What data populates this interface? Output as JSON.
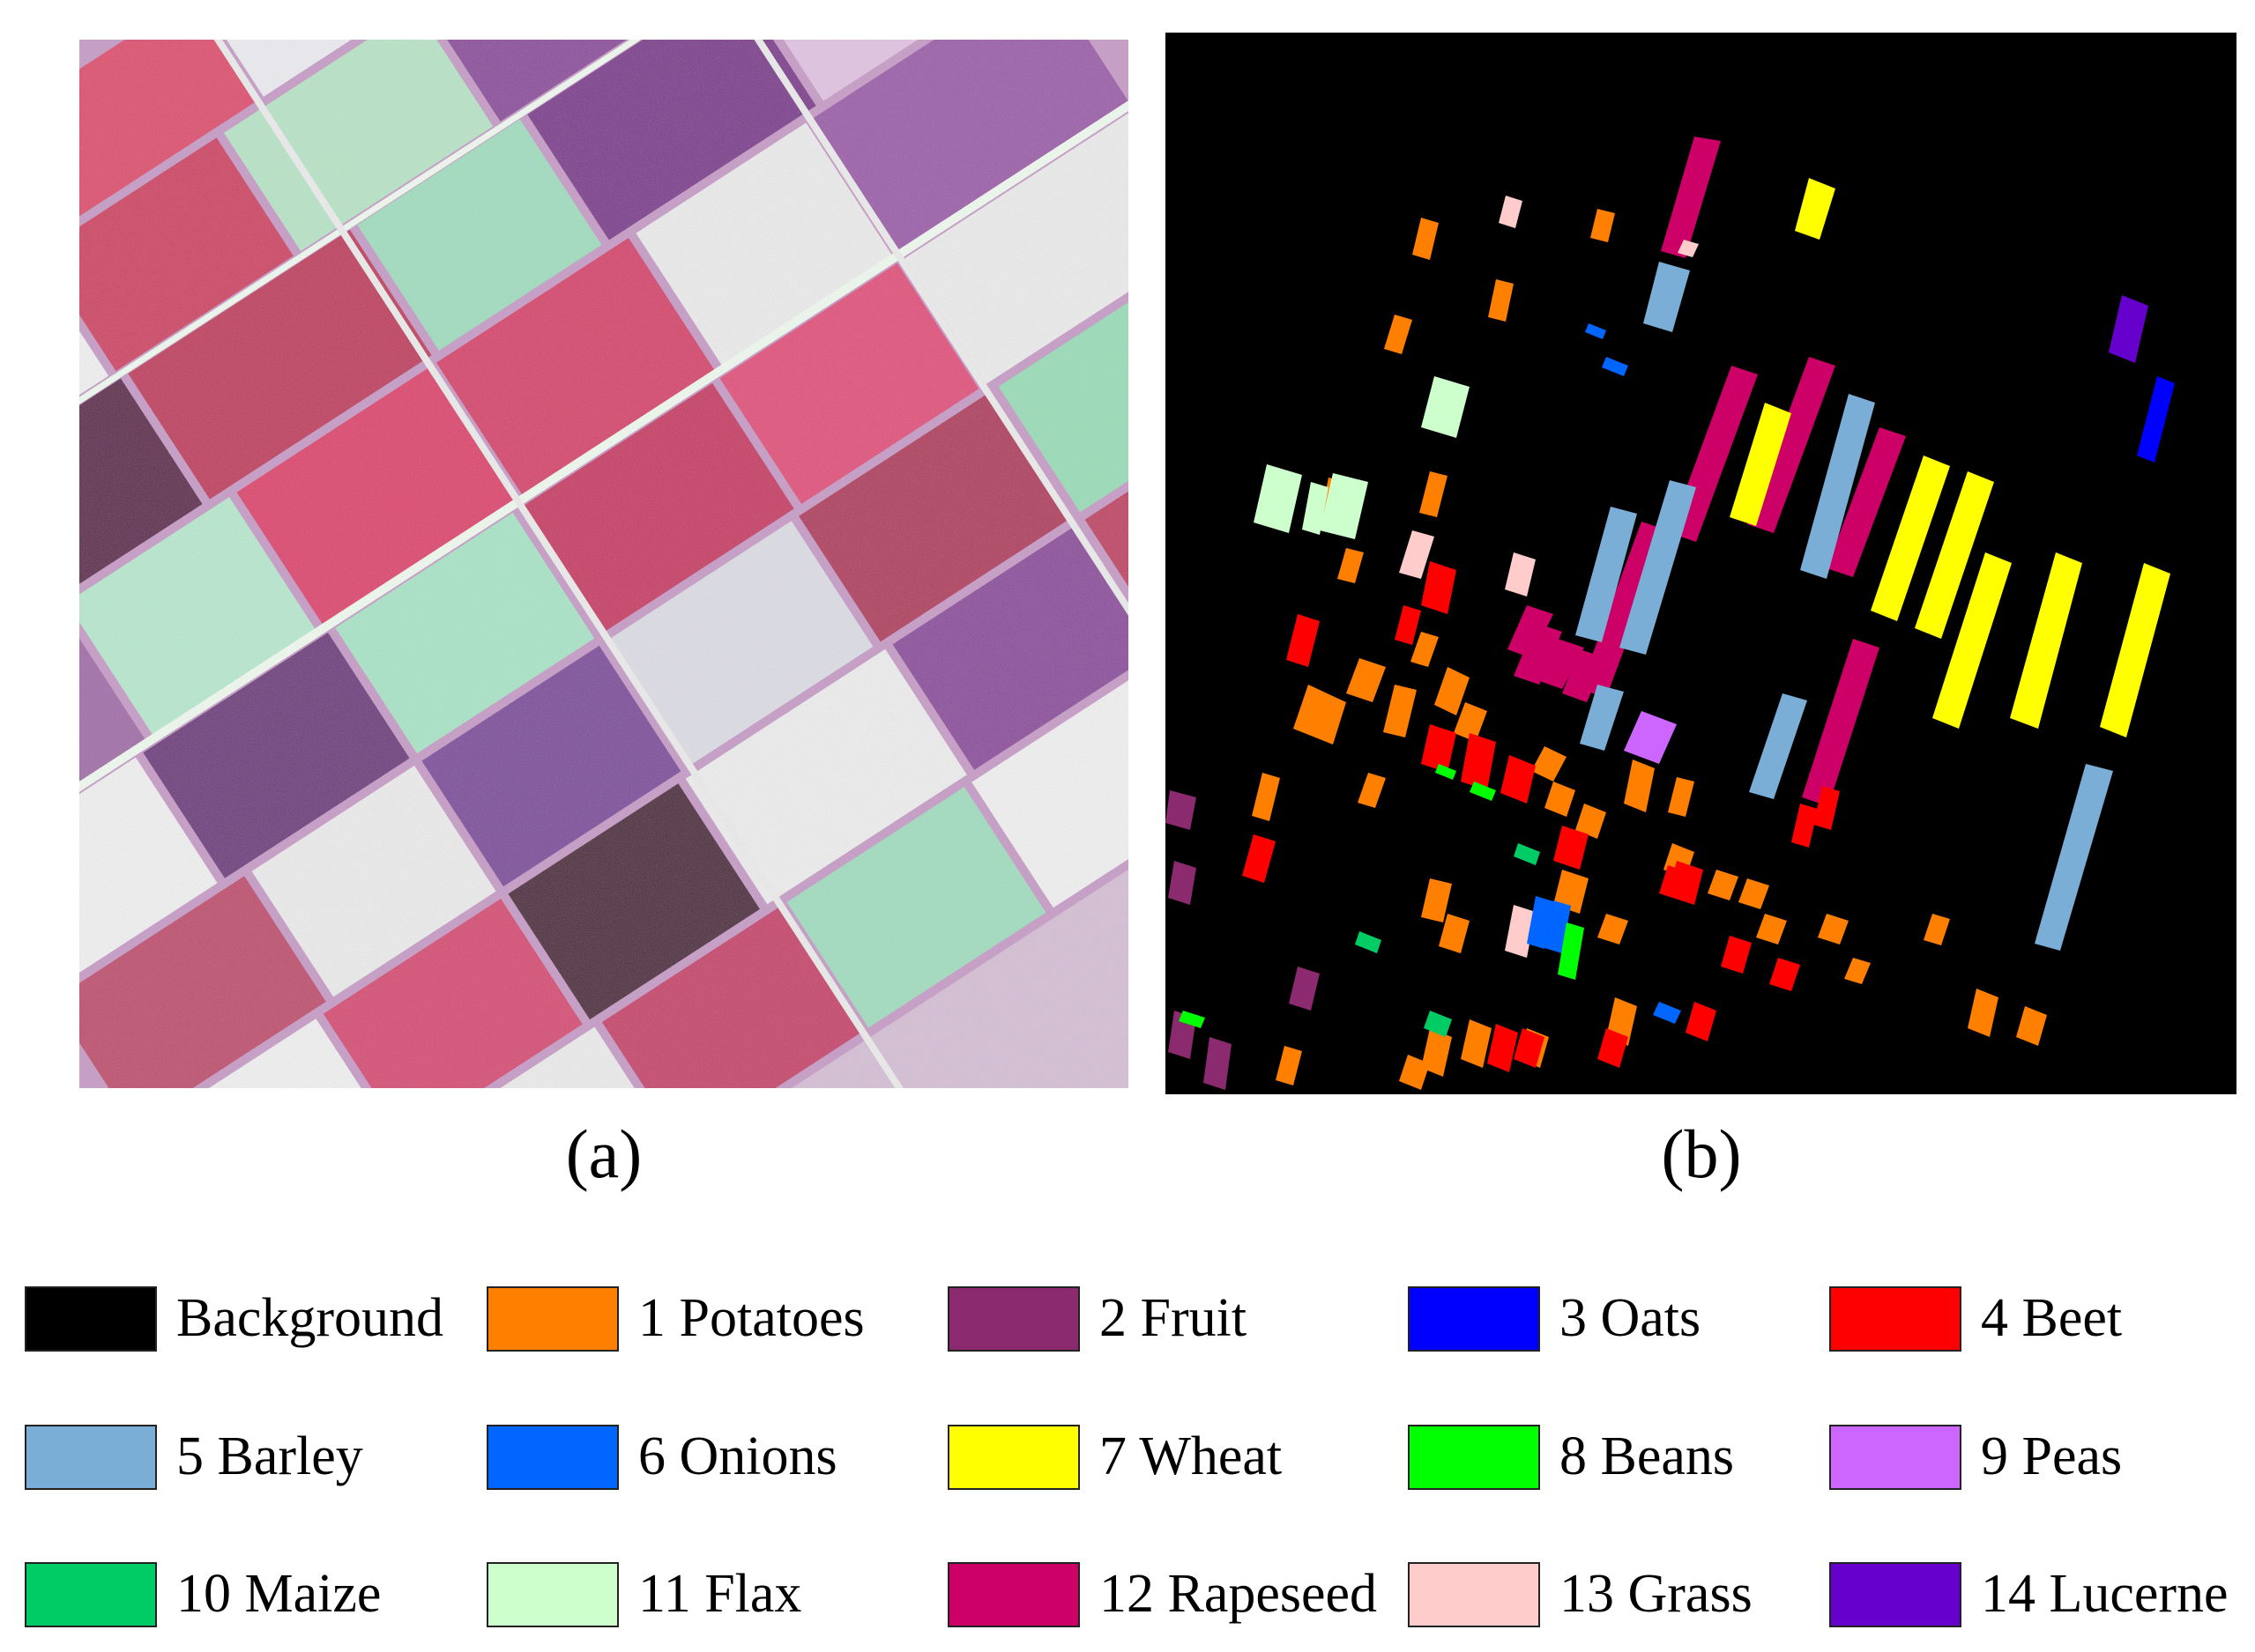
{
  "panels": {
    "a": {
      "caption": "(a)"
    },
    "b": {
      "caption": "(b)"
    }
  },
  "legend": [
    {
      "label": "Background",
      "color": "#000000"
    },
    {
      "label": "1 Potatoes",
      "color": "#ff7f00"
    },
    {
      "label": "2 Fruit",
      "color": "#8b2a6e"
    },
    {
      "label": "3 Oats",
      "color": "#0000ff"
    },
    {
      "label": "4 Beet",
      "color": "#ff0000"
    },
    {
      "label": "5 Barley",
      "color": "#7aaed6"
    },
    {
      "label": "6 Onions",
      "color": "#0066ff"
    },
    {
      "label": "7 Wheat",
      "color": "#ffff00"
    },
    {
      "label": "8 Beans",
      "color": "#00ff00"
    },
    {
      "label": "9 Peas",
      "color": "#cc66ff"
    },
    {
      "label": "10 Maize",
      "color": "#00cc66"
    },
    {
      "label": "11 Flax",
      "color": "#ccffcc"
    },
    {
      "label": "12 Rapeseed",
      "color": "#cc0066"
    },
    {
      "label": "13 Grass",
      "color": "#ffcccc"
    },
    {
      "label": "14 Lucerne",
      "color": "#6600cc"
    }
  ]
}
